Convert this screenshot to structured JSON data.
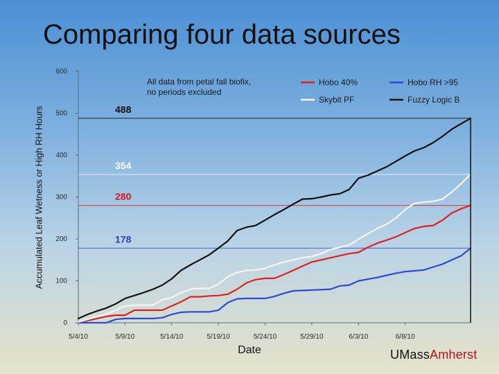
{
  "page": {
    "title": "Comparing four data sources",
    "ylabel": "Accumulated Leaf Wetness or High RH Hours",
    "xlabel": "Date",
    "logo_part1": "UMass",
    "logo_part2": "Amherst"
  },
  "chart_data": {
    "type": "line",
    "title": "Comparing four data sources",
    "xlabel": "Date",
    "ylabel": "Accumulated Leaf Wetness or High RH Hours",
    "ylim": [
      0,
      600
    ],
    "xlim": [
      "2010-05-04",
      "2010-06-15"
    ],
    "x_tick_labels": [
      "5/4/10",
      "5/9/10",
      "5/14/10",
      "5/19/10",
      "5/24/10",
      "5/29/10",
      "6/3/10",
      "6/8/10"
    ],
    "x_tick_dates": [
      "2010-05-04",
      "2010-05-09",
      "2010-05-14",
      "2010-05-19",
      "2010-05-24",
      "2010-05-29",
      "2010-06-03",
      "2010-06-08"
    ],
    "y_ticks": [
      0,
      100,
      200,
      300,
      400,
      500,
      600
    ],
    "annotation": [
      "All data from petal fall biofix,",
      "no periods excluded"
    ],
    "legend_placement": "top",
    "series": [
      {
        "name": "Hobo 40%",
        "color": "#e0201b",
        "final_label": "280",
        "final_value": 280,
        "label_color": "#d01a1a",
        "points": [
          [
            "2010-05-04",
            2
          ],
          [
            "2010-05-05",
            5
          ],
          [
            "2010-05-06",
            10
          ],
          [
            "2010-05-07",
            15
          ],
          [
            "2010-05-08",
            18
          ],
          [
            "2010-05-09",
            18
          ],
          [
            "2010-05-10",
            30
          ],
          [
            "2010-05-11",
            30
          ],
          [
            "2010-05-12",
            30
          ],
          [
            "2010-05-13",
            30
          ],
          [
            "2010-05-14",
            40
          ],
          [
            "2010-05-15",
            50
          ],
          [
            "2010-05-16",
            62
          ],
          [
            "2010-05-17",
            62
          ],
          [
            "2010-05-18",
            64
          ],
          [
            "2010-05-19",
            65
          ],
          [
            "2010-05-20",
            68
          ],
          [
            "2010-05-21",
            80
          ],
          [
            "2010-05-22",
            95
          ],
          [
            "2010-05-23",
            103
          ],
          [
            "2010-05-24",
            106
          ],
          [
            "2010-05-25",
            106
          ],
          [
            "2010-05-26",
            115
          ],
          [
            "2010-05-27",
            125
          ],
          [
            "2010-05-28",
            135
          ],
          [
            "2010-05-29",
            145
          ],
          [
            "2010-05-30",
            150
          ],
          [
            "2010-05-31",
            155
          ],
          [
            "2010-06-01",
            160
          ],
          [
            "2010-06-02",
            165
          ],
          [
            "2010-06-03",
            168
          ],
          [
            "2010-06-04",
            180
          ],
          [
            "2010-06-05",
            190
          ],
          [
            "2010-06-06",
            197
          ],
          [
            "2010-06-07",
            205
          ],
          [
            "2010-06-08",
            215
          ],
          [
            "2010-06-09",
            225
          ],
          [
            "2010-06-10",
            230
          ],
          [
            "2010-06-11",
            232
          ],
          [
            "2010-06-12",
            245
          ],
          [
            "2010-06-13",
            262
          ],
          [
            "2010-06-14",
            272
          ],
          [
            "2010-06-15",
            280
          ]
        ]
      },
      {
        "name": "Hobo RH >95",
        "color": "#2a48d8",
        "final_label": "178",
        "final_value": 178,
        "label_color": "#2a3fc0",
        "points": [
          [
            "2010-05-04",
            0
          ],
          [
            "2010-05-07",
            0
          ],
          [
            "2010-05-08",
            8
          ],
          [
            "2010-05-09",
            10
          ],
          [
            "2010-05-12",
            10
          ],
          [
            "2010-05-13",
            12
          ],
          [
            "2010-05-14",
            20
          ],
          [
            "2010-05-15",
            25
          ],
          [
            "2010-05-16",
            26
          ],
          [
            "2010-05-18",
            26
          ],
          [
            "2010-05-19",
            30
          ],
          [
            "2010-05-20",
            48
          ],
          [
            "2010-05-21",
            57
          ],
          [
            "2010-05-22",
            58
          ],
          [
            "2010-05-24",
            58
          ],
          [
            "2010-05-25",
            63
          ],
          [
            "2010-05-26",
            70
          ],
          [
            "2010-05-27",
            76
          ],
          [
            "2010-05-28",
            77
          ],
          [
            "2010-05-29",
            78
          ],
          [
            "2010-05-31",
            80
          ],
          [
            "2010-06-01",
            88
          ],
          [
            "2010-06-02",
            90
          ],
          [
            "2010-06-03",
            100
          ],
          [
            "2010-06-04",
            104
          ],
          [
            "2010-06-05",
            108
          ],
          [
            "2010-06-06",
            113
          ],
          [
            "2010-06-07",
            118
          ],
          [
            "2010-06-08",
            122
          ],
          [
            "2010-06-09",
            124
          ],
          [
            "2010-06-10",
            126
          ],
          [
            "2010-06-11",
            133
          ],
          [
            "2010-06-12",
            140
          ],
          [
            "2010-06-13",
            150
          ],
          [
            "2010-06-14",
            160
          ],
          [
            "2010-06-15",
            178
          ]
        ]
      },
      {
        "name": "Skybit PF",
        "color": "#f5f5f5",
        "final_label": "354",
        "final_value": 354,
        "label_color": "#ffffff",
        "points": [
          [
            "2010-05-04",
            2
          ],
          [
            "2010-05-05",
            8
          ],
          [
            "2010-05-06",
            15
          ],
          [
            "2010-05-07",
            20
          ],
          [
            "2010-05-08",
            30
          ],
          [
            "2010-05-09",
            40
          ],
          [
            "2010-05-10",
            42
          ],
          [
            "2010-05-11",
            42
          ],
          [
            "2010-05-12",
            42
          ],
          [
            "2010-05-13",
            55
          ],
          [
            "2010-05-14",
            60
          ],
          [
            "2010-05-15",
            72
          ],
          [
            "2010-05-16",
            80
          ],
          [
            "2010-05-17",
            82
          ],
          [
            "2010-05-18",
            82
          ],
          [
            "2010-05-19",
            92
          ],
          [
            "2010-05-20",
            110
          ],
          [
            "2010-05-21",
            120
          ],
          [
            "2010-05-22",
            125
          ],
          [
            "2010-05-23",
            126
          ],
          [
            "2010-05-24",
            130
          ],
          [
            "2010-05-25",
            138
          ],
          [
            "2010-05-26",
            145
          ],
          [
            "2010-05-27",
            150
          ],
          [
            "2010-05-28",
            155
          ],
          [
            "2010-05-29",
            158
          ],
          [
            "2010-05-30",
            165
          ],
          [
            "2010-05-31",
            175
          ],
          [
            "2010-06-01",
            180
          ],
          [
            "2010-06-02",
            185
          ],
          [
            "2010-06-03",
            200
          ],
          [
            "2010-06-04",
            212
          ],
          [
            "2010-06-05",
            225
          ],
          [
            "2010-06-06",
            235
          ],
          [
            "2010-06-07",
            250
          ],
          [
            "2010-06-08",
            270
          ],
          [
            "2010-06-09",
            285
          ],
          [
            "2010-06-10",
            288
          ],
          [
            "2010-06-11",
            290
          ],
          [
            "2010-06-12",
            295
          ],
          [
            "2010-06-13",
            312
          ],
          [
            "2010-06-14",
            332
          ],
          [
            "2010-06-15",
            354
          ]
        ]
      },
      {
        "name": "Fuzzy Logic B",
        "color": "#111111",
        "final_label": "488",
        "final_value": 488,
        "label_color": "#111111",
        "points": [
          [
            "2010-05-04",
            10
          ],
          [
            "2010-05-05",
            20
          ],
          [
            "2010-05-06",
            28
          ],
          [
            "2010-05-07",
            35
          ],
          [
            "2010-05-08",
            45
          ],
          [
            "2010-05-09",
            58
          ],
          [
            "2010-05-10",
            65
          ],
          [
            "2010-05-11",
            72
          ],
          [
            "2010-05-12",
            80
          ],
          [
            "2010-05-13",
            90
          ],
          [
            "2010-05-14",
            105
          ],
          [
            "2010-05-15",
            125
          ],
          [
            "2010-05-16",
            138
          ],
          [
            "2010-05-17",
            150
          ],
          [
            "2010-05-18",
            162
          ],
          [
            "2010-05-19",
            178
          ],
          [
            "2010-05-20",
            195
          ],
          [
            "2010-05-21",
            220
          ],
          [
            "2010-05-22",
            228
          ],
          [
            "2010-05-23",
            232
          ],
          [
            "2010-05-24",
            245
          ],
          [
            "2010-05-25",
            258
          ],
          [
            "2010-05-26",
            270
          ],
          [
            "2010-05-27",
            283
          ],
          [
            "2010-05-28",
            295
          ],
          [
            "2010-05-29",
            296
          ],
          [
            "2010-05-30",
            300
          ],
          [
            "2010-05-31",
            305
          ],
          [
            "2010-06-01",
            308
          ],
          [
            "2010-06-02",
            318
          ],
          [
            "2010-06-03",
            345
          ],
          [
            "2010-06-04",
            352
          ],
          [
            "2010-06-05",
            362
          ],
          [
            "2010-06-06",
            372
          ],
          [
            "2010-06-07",
            385
          ],
          [
            "2010-06-08",
            398
          ],
          [
            "2010-06-09",
            410
          ],
          [
            "2010-06-10",
            418
          ],
          [
            "2010-06-11",
            430
          ],
          [
            "2010-06-12",
            445
          ],
          [
            "2010-06-13",
            462
          ],
          [
            "2010-06-14",
            475
          ],
          [
            "2010-06-15",
            488
          ]
        ]
      }
    ]
  }
}
